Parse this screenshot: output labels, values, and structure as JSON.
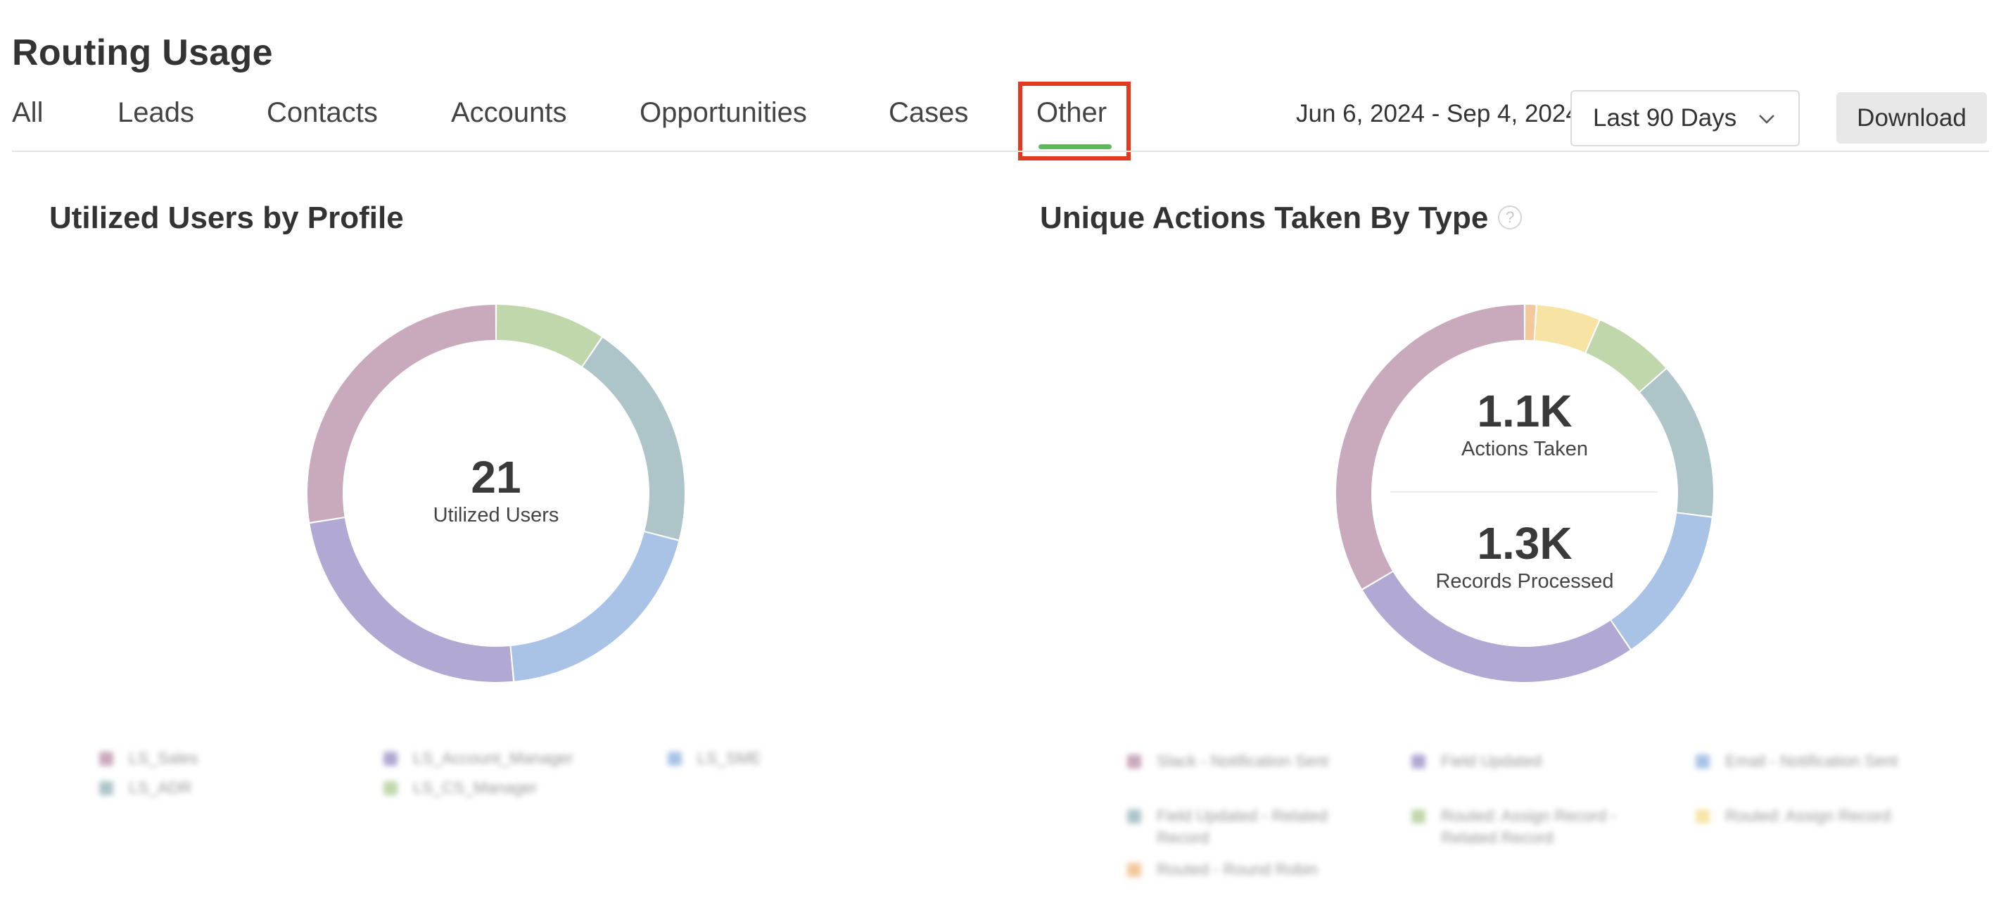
{
  "header": {
    "title": "Routing Usage",
    "date_range": "Jun 6, 2024 - Sep 4, 2024",
    "range_select": {
      "selected": "Last 90 Days"
    },
    "download_label": "Download"
  },
  "tabs": [
    {
      "label": "All",
      "active": false
    },
    {
      "label": "Leads",
      "active": false
    },
    {
      "label": "Contacts",
      "active": false
    },
    {
      "label": "Accounts",
      "active": false
    },
    {
      "label": "Opportunities",
      "active": false
    },
    {
      "label": "Cases",
      "active": false
    },
    {
      "label": "Other",
      "active": true
    }
  ],
  "colors": {
    "pink": "#c9a9bc",
    "green": "#c0d6ab",
    "teal": "#adc4c8",
    "blue": "#a8c3e6",
    "purple": "#b1a8d3",
    "yellow": "#f7e4a4",
    "orange": "#f2c89c",
    "tab_indicator": "#5cb85c",
    "highlight": "#e23a20"
  },
  "users_panel": {
    "title": "Utilized Users by Profile",
    "center_value": "21",
    "center_label": "Utilized Users",
    "legend": [
      {
        "label": "LS_Sales",
        "color": "#c9a9bc"
      },
      {
        "label": "LS_Account_Manager",
        "color": "#b1a8d3"
      },
      {
        "label": "LS_SME",
        "color": "#a8c3e6"
      },
      {
        "label": "LS_ADR",
        "color": "#adc4c8"
      },
      {
        "label": "LS_CS_Manager",
        "color": "#c0d6ab"
      }
    ]
  },
  "actions_panel": {
    "title": "Unique Actions Taken By Type",
    "actions_value": "1.1K",
    "actions_label": "Actions Taken",
    "records_value": "1.3K",
    "records_label": "Records Processed",
    "legend": [
      {
        "label": "Slack - Notification Sent",
        "color": "#c9a9bc"
      },
      {
        "label": "Field Updated",
        "color": "#b1a8d3"
      },
      {
        "label": "Email - Notification Sent",
        "color": "#a8c3e6"
      },
      {
        "label": "Field Updated - Related Record",
        "color": "#adc4c8"
      },
      {
        "label": "Routed: Assign Record - Related Record",
        "color": "#c0d6ab"
      },
      {
        "label": "Routed: Assign Record",
        "color": "#f7e4a4"
      },
      {
        "label": "Routed - Round Robin",
        "color": "#f2c89c"
      }
    ]
  },
  "chart_data": [
    {
      "type": "pie",
      "title": "Utilized Users by Profile",
      "slices": [
        {
          "label": "LS_CS_Manager",
          "value": 9.5
        },
        {
          "label": "LS_ADR",
          "value": 19.5
        },
        {
          "label": "LS_SME",
          "value": 19.5
        },
        {
          "label": "LS_Account_Manager",
          "value": 24
        },
        {
          "label": "LS_Sales",
          "value": 27.5
        }
      ]
    },
    {
      "type": "pie",
      "title": "Unique Actions Taken By Type",
      "slices": [
        {
          "label": "Routed - Round Robin",
          "value": 1
        },
        {
          "label": "Routed: Assign Record",
          "value": 5.5
        },
        {
          "label": "Routed: Assign Record - Related Record",
          "value": 7
        },
        {
          "label": "Field Updated - Related Record",
          "value": 13.5
        },
        {
          "label": "Email - Notification Sent",
          "value": 13.5
        },
        {
          "label": "Field Updated",
          "value": 26
        },
        {
          "label": "Slack - Notification Sent",
          "value": 33.5
        }
      ]
    }
  ]
}
